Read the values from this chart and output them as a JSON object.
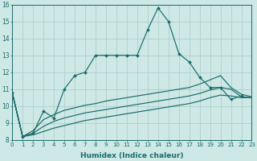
{
  "xlabel": "Humidex (Indice chaleur)",
  "bg_color": "#cde8e5",
  "grid_color": "#b0d0cc",
  "line_color": "#1a6b6b",
  "xlim": [
    0,
    23
  ],
  "ylim": [
    8,
    16
  ],
  "yticks": [
    8,
    9,
    10,
    11,
    12,
    13,
    14,
    15,
    16
  ],
  "xticks": [
    0,
    1,
    2,
    3,
    4,
    5,
    6,
    7,
    8,
    9,
    10,
    11,
    12,
    13,
    14,
    15,
    16,
    17,
    18,
    19,
    20,
    21,
    22,
    23
  ],
  "main_line": {
    "x": [
      0,
      1,
      2,
      3,
      4,
      5,
      6,
      7,
      8,
      9,
      10,
      11,
      12,
      13,
      14,
      15,
      16,
      17,
      18,
      19,
      20,
      21,
      22
    ],
    "y": [
      10.8,
      8.2,
      8.4,
      9.7,
      9.3,
      11.0,
      11.8,
      12.0,
      13.0,
      13.0,
      13.0,
      13.0,
      13.0,
      14.5,
      15.8,
      15.0,
      13.1,
      12.6,
      11.7,
      11.1,
      11.1,
      10.4,
      10.6
    ]
  },
  "smooth_lines": [
    {
      "x": [
        0,
        1,
        2,
        3,
        4,
        5,
        6,
        7,
        8,
        9,
        10,
        11,
        12,
        13,
        14,
        15,
        16,
        17,
        18,
        19,
        20,
        21,
        22,
        23
      ],
      "y": [
        10.8,
        8.2,
        8.55,
        9.2,
        9.5,
        9.75,
        9.9,
        10.05,
        10.15,
        10.3,
        10.4,
        10.5,
        10.6,
        10.7,
        10.8,
        10.9,
        11.0,
        11.1,
        11.3,
        11.55,
        11.8,
        11.1,
        10.7,
        10.55
      ]
    },
    {
      "x": [
        0,
        1,
        2,
        3,
        4,
        5,
        6,
        7,
        8,
        9,
        10,
        11,
        12,
        13,
        14,
        15,
        16,
        17,
        18,
        19,
        20,
        21,
        22,
        23
      ],
      "y": [
        10.8,
        8.2,
        8.4,
        8.8,
        9.1,
        9.3,
        9.45,
        9.6,
        9.7,
        9.8,
        9.9,
        10.0,
        10.1,
        10.2,
        10.3,
        10.4,
        10.5,
        10.6,
        10.75,
        10.95,
        11.1,
        11.0,
        10.55,
        10.5
      ]
    },
    {
      "x": [
        0,
        1,
        2,
        3,
        4,
        5,
        6,
        7,
        8,
        9,
        10,
        11,
        12,
        13,
        14,
        15,
        16,
        17,
        18,
        19,
        20,
        21,
        22,
        23
      ],
      "y": [
        10.8,
        8.2,
        8.3,
        8.5,
        8.7,
        8.85,
        9.0,
        9.15,
        9.25,
        9.35,
        9.45,
        9.55,
        9.65,
        9.75,
        9.85,
        9.95,
        10.05,
        10.15,
        10.3,
        10.5,
        10.65,
        10.6,
        10.5,
        10.5
      ]
    }
  ]
}
